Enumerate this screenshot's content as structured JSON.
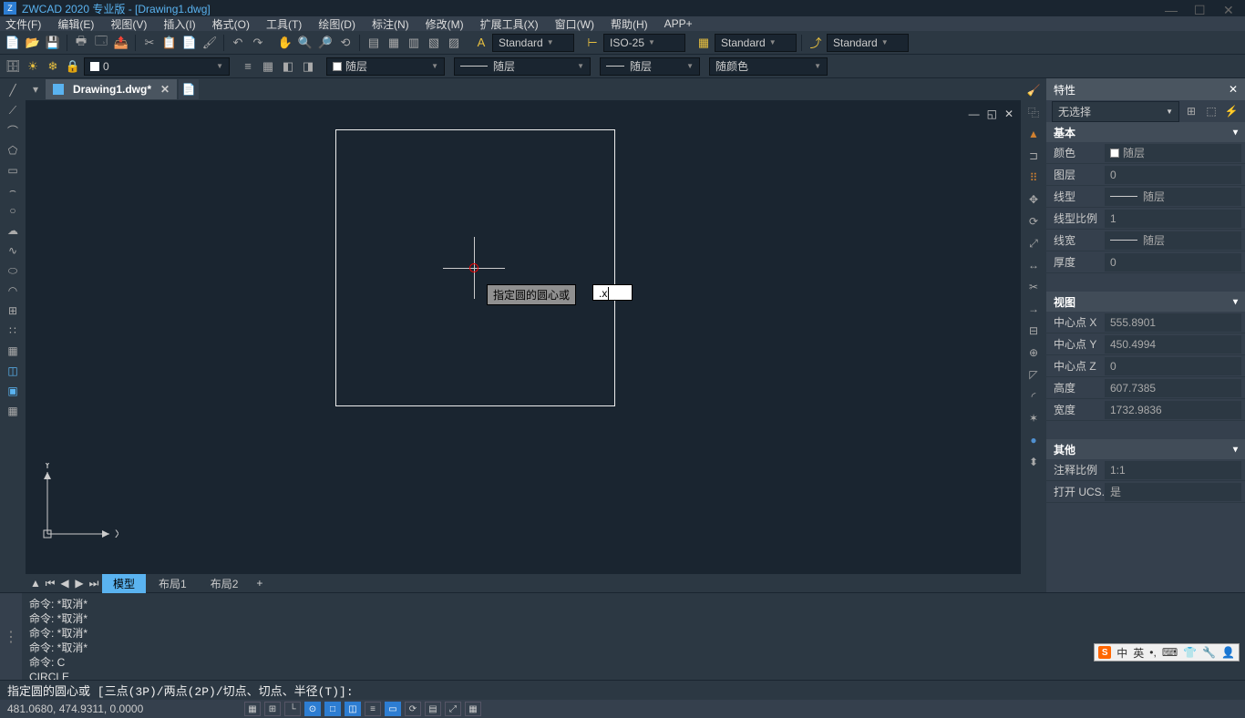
{
  "title": "ZWCAD 2020 专业版 - [Drawing1.dwg]",
  "menus": [
    "文件(F)",
    "编辑(E)",
    "视图(V)",
    "插入(I)",
    "格式(O)",
    "工具(T)",
    "绘图(D)",
    "标注(N)",
    "修改(M)",
    "扩展工具(X)",
    "窗口(W)",
    "帮助(H)",
    "APP+"
  ],
  "toolbar1_dropdowns": {
    "style1": "Standard",
    "style2": "ISO-25",
    "style3": "Standard"
  },
  "toolbar2": {
    "layer": "0",
    "bylayer1": "随层",
    "bylayer2": "随层",
    "bylayer3": "随层",
    "bycolor": "随颜色"
  },
  "file_tab": "Drawing1.dwg*",
  "layout_tabs": {
    "model": "模型",
    "layout1": "布局1",
    "layout2": "布局2"
  },
  "canvas": {
    "tooltip": "指定圆的圆心或",
    "input_value": ".x"
  },
  "ucs": {
    "x": "X",
    "y": "Y"
  },
  "cmd_history": [
    "命令: *取消*",
    "命令: *取消*",
    "命令: *取消*",
    "命令: *取消*",
    "命令: C",
    "CIRCLE"
  ],
  "cmd_prompt": "指定圆的圆心或 [三点(3P)/两点(2P)/切点、切点、半径(T)]:",
  "status": {
    "coords": "481.0680, 474.9311, 0.0000"
  },
  "properties": {
    "title": "特性",
    "selector": "无选择",
    "sections": {
      "basic": {
        "header": "基本",
        "rows": {
          "color_label": "颜色",
          "color_value": "随层",
          "layer_label": "图层",
          "layer_value": "0",
          "linetype_label": "线型",
          "linetype_value": "随层",
          "ltscale_label": "线型比例",
          "ltscale_value": "1",
          "lineweight_label": "线宽",
          "lineweight_value": "随层",
          "thickness_label": "厚度",
          "thickness_value": "0"
        }
      },
      "view": {
        "header": "视图",
        "rows": {
          "cx_label": "中心点 X",
          "cx_value": "555.8901",
          "cy_label": "中心点 Y",
          "cy_value": "450.4994",
          "cz_label": "中心点 Z",
          "cz_value": "0",
          "height_label": "高度",
          "height_value": "607.7385",
          "width_label": "宽度",
          "width_value": "1732.9836"
        }
      },
      "other": {
        "header": "其他",
        "rows": {
          "anno_label": "注释比例",
          "anno_value": "1:1",
          "ucs_label": "打开 UCS...",
          "ucs_value": "是"
        }
      }
    }
  },
  "ime": {
    "lang": "中",
    "mode": "英",
    "dot1": ".",
    "dot2": ","
  }
}
